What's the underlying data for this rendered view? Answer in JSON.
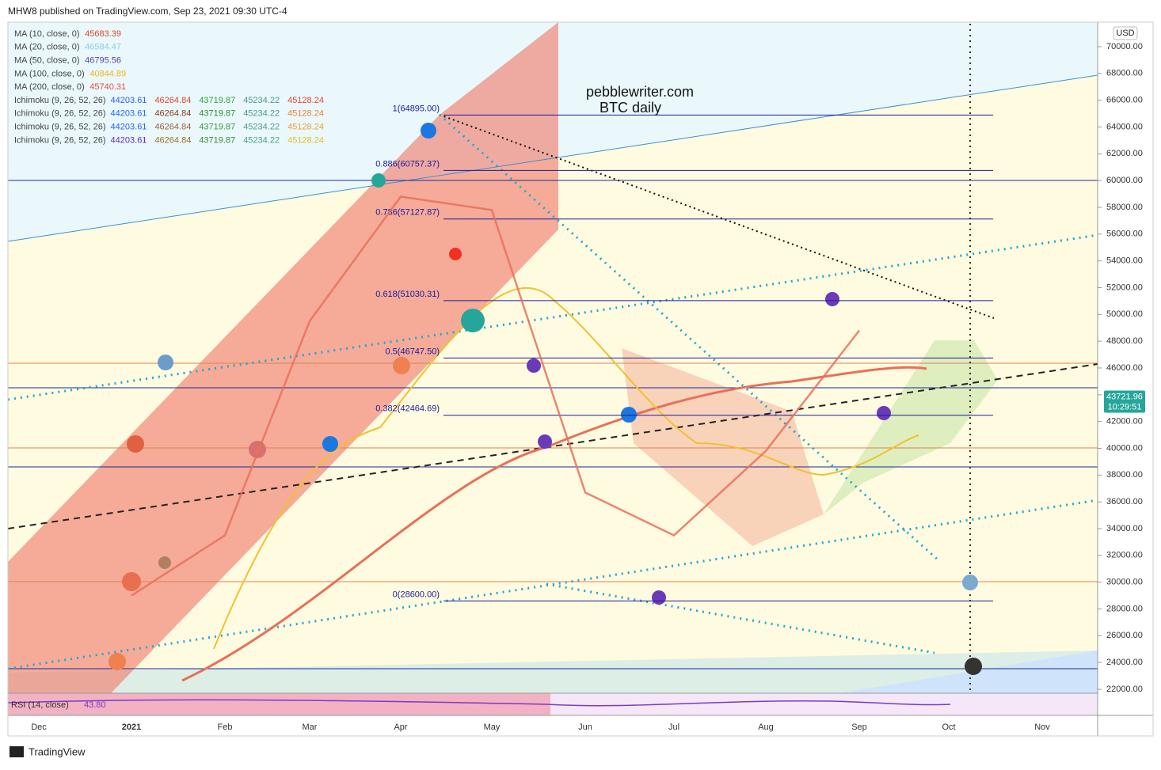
{
  "header": "MHW8 published on TradingView.com, Sep 23, 2021 09:30 UTC-4",
  "footer": "TradingView",
  "legend": [
    {
      "name": "MA (10, close, 0)",
      "values": [
        45683.39
      ],
      "colors": [
        "#e8412c"
      ]
    },
    {
      "name": "MA (20, close, 0)",
      "values": [
        46584.47
      ],
      "colors": [
        "#8ec9e8"
      ]
    },
    {
      "name": "MA (50, close, 0)",
      "values": [
        46795.56
      ],
      "colors": [
        "#5b3fa8"
      ]
    },
    {
      "name": "MA (100, close, 0)",
      "values": [
        40844.89
      ],
      "colors": [
        "#f2b31b"
      ]
    },
    {
      "name": "MA (200, close, 0)",
      "values": [
        45740.31
      ],
      "colors": [
        "#e84c3d"
      ]
    },
    {
      "name": "Ichimoku (9, 26, 52, 26)",
      "values": [
        44203.61,
        46264.84,
        43719.87,
        45234.22,
        45128.24
      ],
      "colors": [
        "#2962ff",
        "#e8412c",
        "#2e9e3a",
        "#4a9a8a",
        "#e8412c"
      ]
    },
    {
      "name": "Ichimoku (9, 26, 52, 26)",
      "values": [
        44203.61,
        46264.84,
        43719.87,
        45234.22,
        45128.24
      ],
      "colors": [
        "#2962ff",
        "#8b3a1e",
        "#2e8a2e",
        "#4a9a8a",
        "#f08030"
      ]
    },
    {
      "name": "Ichimoku (9, 26, 52, 26)",
      "values": [
        44203.61,
        46264.84,
        43719.87,
        45234.22,
        45128.24
      ],
      "colors": [
        "#2962ff",
        "#a0603a",
        "#3a9a3a",
        "#4aa08a",
        "#f0a030"
      ]
    },
    {
      "name": "Ichimoku (9, 26, 52, 26)",
      "values": [
        44203.61,
        46264.84,
        43719.87,
        45234.22,
        45128.24
      ],
      "colors": [
        "#5b2fc0",
        "#a07020",
        "#3a8a3a",
        "#4aa08a",
        "#e8c020"
      ]
    }
  ],
  "rsi": {
    "name": "RSI (14, close)",
    "value": 43.8,
    "label": "43.80"
  },
  "chart_data": {
    "type": "line",
    "annotations": [
      "pebblewriter.com",
      "BTC daily"
    ],
    "currency": "USD",
    "last_price": 43721.96,
    "countdown": "10:29:51",
    "categories": [
      "Dec",
      "2021",
      "Feb",
      "Mar",
      "Apr",
      "May",
      "Jun",
      "Jul",
      "Aug",
      "Sep",
      "Oct",
      "Nov"
    ],
    "series": [
      {
        "name": "BTC",
        "color": "#e8705a",
        "values": [
          null,
          29000,
          33500,
          49500,
          58800,
          57800,
          36700,
          33500,
          39800,
          48800,
          null,
          null
        ]
      }
    ],
    "fib_levels": [
      {
        "label": "1(64895.00)",
        "price": 64895.0
      },
      {
        "label": "0.886(60757.37)",
        "price": 60757.37
      },
      {
        "label": "0.786(57127.87)",
        "price": 57127.87
      },
      {
        "label": "0.618(51030.31)",
        "price": 51030.31
      },
      {
        "label": "0.5(46747.50)",
        "price": 46747.5
      },
      {
        "label": "0.382(42464.69)",
        "price": 42464.69
      },
      {
        "label": "0(28600.00)",
        "price": 28600.0
      }
    ],
    "ylim": [
      22000,
      70000
    ],
    "yticks": [
      {
        "value": 22000,
        "label": "22000.00"
      },
      {
        "value": 24000,
        "label": "24000.00"
      },
      {
        "value": 26000,
        "label": "26000.00"
      },
      {
        "value": 28000,
        "label": "28000.00"
      },
      {
        "value": 30000,
        "label": "30000.00"
      },
      {
        "value": 32000,
        "label": "32000.00"
      },
      {
        "value": 34000,
        "label": "34000.00"
      },
      {
        "value": 36000,
        "label": "36000.00"
      },
      {
        "value": 38000,
        "label": "38000.00"
      },
      {
        "value": 40000,
        "label": "40000.00"
      },
      {
        "value": 42000,
        "label": "42000.00"
      },
      {
        "value": 44000,
        "label": "44000.00"
      },
      {
        "value": 46000,
        "label": "46000.00"
      },
      {
        "value": 48000,
        "label": "48000.00"
      },
      {
        "value": 50000,
        "label": "50000.00"
      },
      {
        "value": 52000,
        "label": "52000.00"
      },
      {
        "value": 54000,
        "label": "54000.00"
      },
      {
        "value": 56000,
        "label": "56000.00"
      },
      {
        "value": 58000,
        "label": "58000.00"
      },
      {
        "value": 60000,
        "label": "60000.00"
      },
      {
        "value": 62000,
        "label": "62000.00"
      },
      {
        "value": 64000,
        "label": "64000.00"
      },
      {
        "value": 66000,
        "label": "66000.00"
      },
      {
        "value": 68000,
        "label": "68000.00"
      },
      {
        "value": 70000,
        "label": "70000.00"
      }
    ]
  }
}
